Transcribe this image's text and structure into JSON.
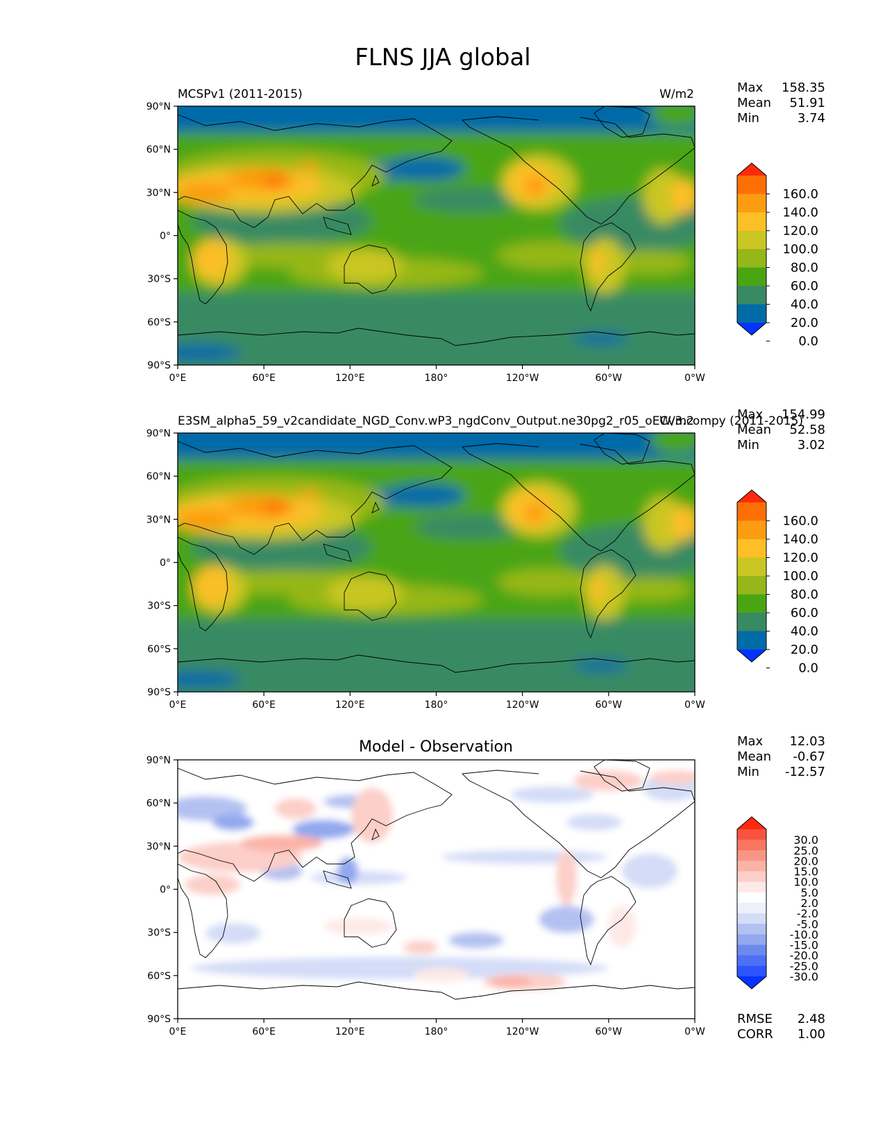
{
  "figure_title": "FLNS JJA global",
  "lat_tick_labels": [
    "90°N",
    "60°N",
    "30°N",
    "0°",
    "30°S",
    "60°S",
    "90°S"
  ],
  "lon_tick_labels": [
    "0°E",
    "60°E",
    "120°E",
    "180°",
    "120°W",
    "60°W",
    "0°W"
  ],
  "colors": {
    "main_levels": [
      "#0433ff",
      "#016ba8",
      "#388a63",
      "#4aa512",
      "#95b719",
      "#c9c623",
      "#fcbf25",
      "#fd9c11",
      "#fd6f05",
      "#ff2a0a"
    ],
    "diff_levels": [
      "#0433ff",
      "#2a55ff",
      "#4d70f7",
      "#6c8aeb",
      "#92a8ef",
      "#b3c1f2",
      "#d4dcf7",
      "#eef1fc",
      "#ffffff",
      "#fde9e6",
      "#fccfc8",
      "#fbb3a8",
      "#fa9585",
      "#f97663",
      "#f75440",
      "#ff2a0a"
    ]
  },
  "chart_data": [
    {
      "type": "heatmap",
      "title_left": "MCSPv1 (2011-2015)",
      "title_right": "W/m2",
      "stats": [
        {
          "label": "Max",
          "value": "158.35"
        },
        {
          "label": "Mean",
          "value": "51.91"
        },
        {
          "label": "Min",
          "value": "3.74"
        }
      ],
      "colorbar_labels": [
        "160.0",
        "140.0",
        "120.0",
        "100.0",
        "80.0",
        "60.0",
        "40.0",
        "20.0",
        "0.0"
      ],
      "colorbar_levels": [
        0,
        20,
        40,
        60,
        80,
        100,
        120,
        140,
        160
      ],
      "xlim": [
        0,
        360
      ],
      "ylim": [
        -90,
        90
      ]
    },
    {
      "type": "heatmap",
      "title_left": "E3SM_alpha5_59_v2candidate_NGD_Conv.wP3_ngdConv_Output.ne30pg2_r05_oECv3.compy (2011-2015)",
      "title_right": "W/m2",
      "stats": [
        {
          "label": "Max",
          "value": "154.99"
        },
        {
          "label": "Mean",
          "value": "52.58"
        },
        {
          "label": "Min",
          "value": "3.02"
        }
      ],
      "colorbar_labels": [
        "160.0",
        "140.0",
        "120.0",
        "100.0",
        "80.0",
        "60.0",
        "40.0",
        "20.0",
        "0.0"
      ],
      "colorbar_levels": [
        0,
        20,
        40,
        60,
        80,
        100,
        120,
        140,
        160
      ],
      "xlim": [
        0,
        360
      ],
      "ylim": [
        -90,
        90
      ]
    },
    {
      "type": "heatmap",
      "title_center": "Model - Observation",
      "stats": [
        {
          "label": "Max",
          "value": "12.03"
        },
        {
          "label": "Mean",
          "value": "-0.67"
        },
        {
          "label": "Min",
          "value": "-12.57"
        }
      ],
      "colorbar_labels": [
        "30.0",
        "25.0",
        "20.0",
        "15.0",
        "10.0",
        "5.0",
        "2.0",
        "-2.0",
        "-5.0",
        "-10.0",
        "-15.0",
        "-20.0",
        "-25.0",
        "-30.0"
      ],
      "colorbar_levels": [
        -30,
        -25,
        -20,
        -15,
        -10,
        -5,
        -2,
        2,
        5,
        10,
        15,
        20,
        25,
        30
      ],
      "extra_stats": [
        {
          "label": "RMSE",
          "value": "2.48"
        },
        {
          "label": "CORR",
          "value": "1.00"
        }
      ],
      "xlim": [
        0,
        360
      ],
      "ylim": [
        -90,
        90
      ]
    }
  ]
}
